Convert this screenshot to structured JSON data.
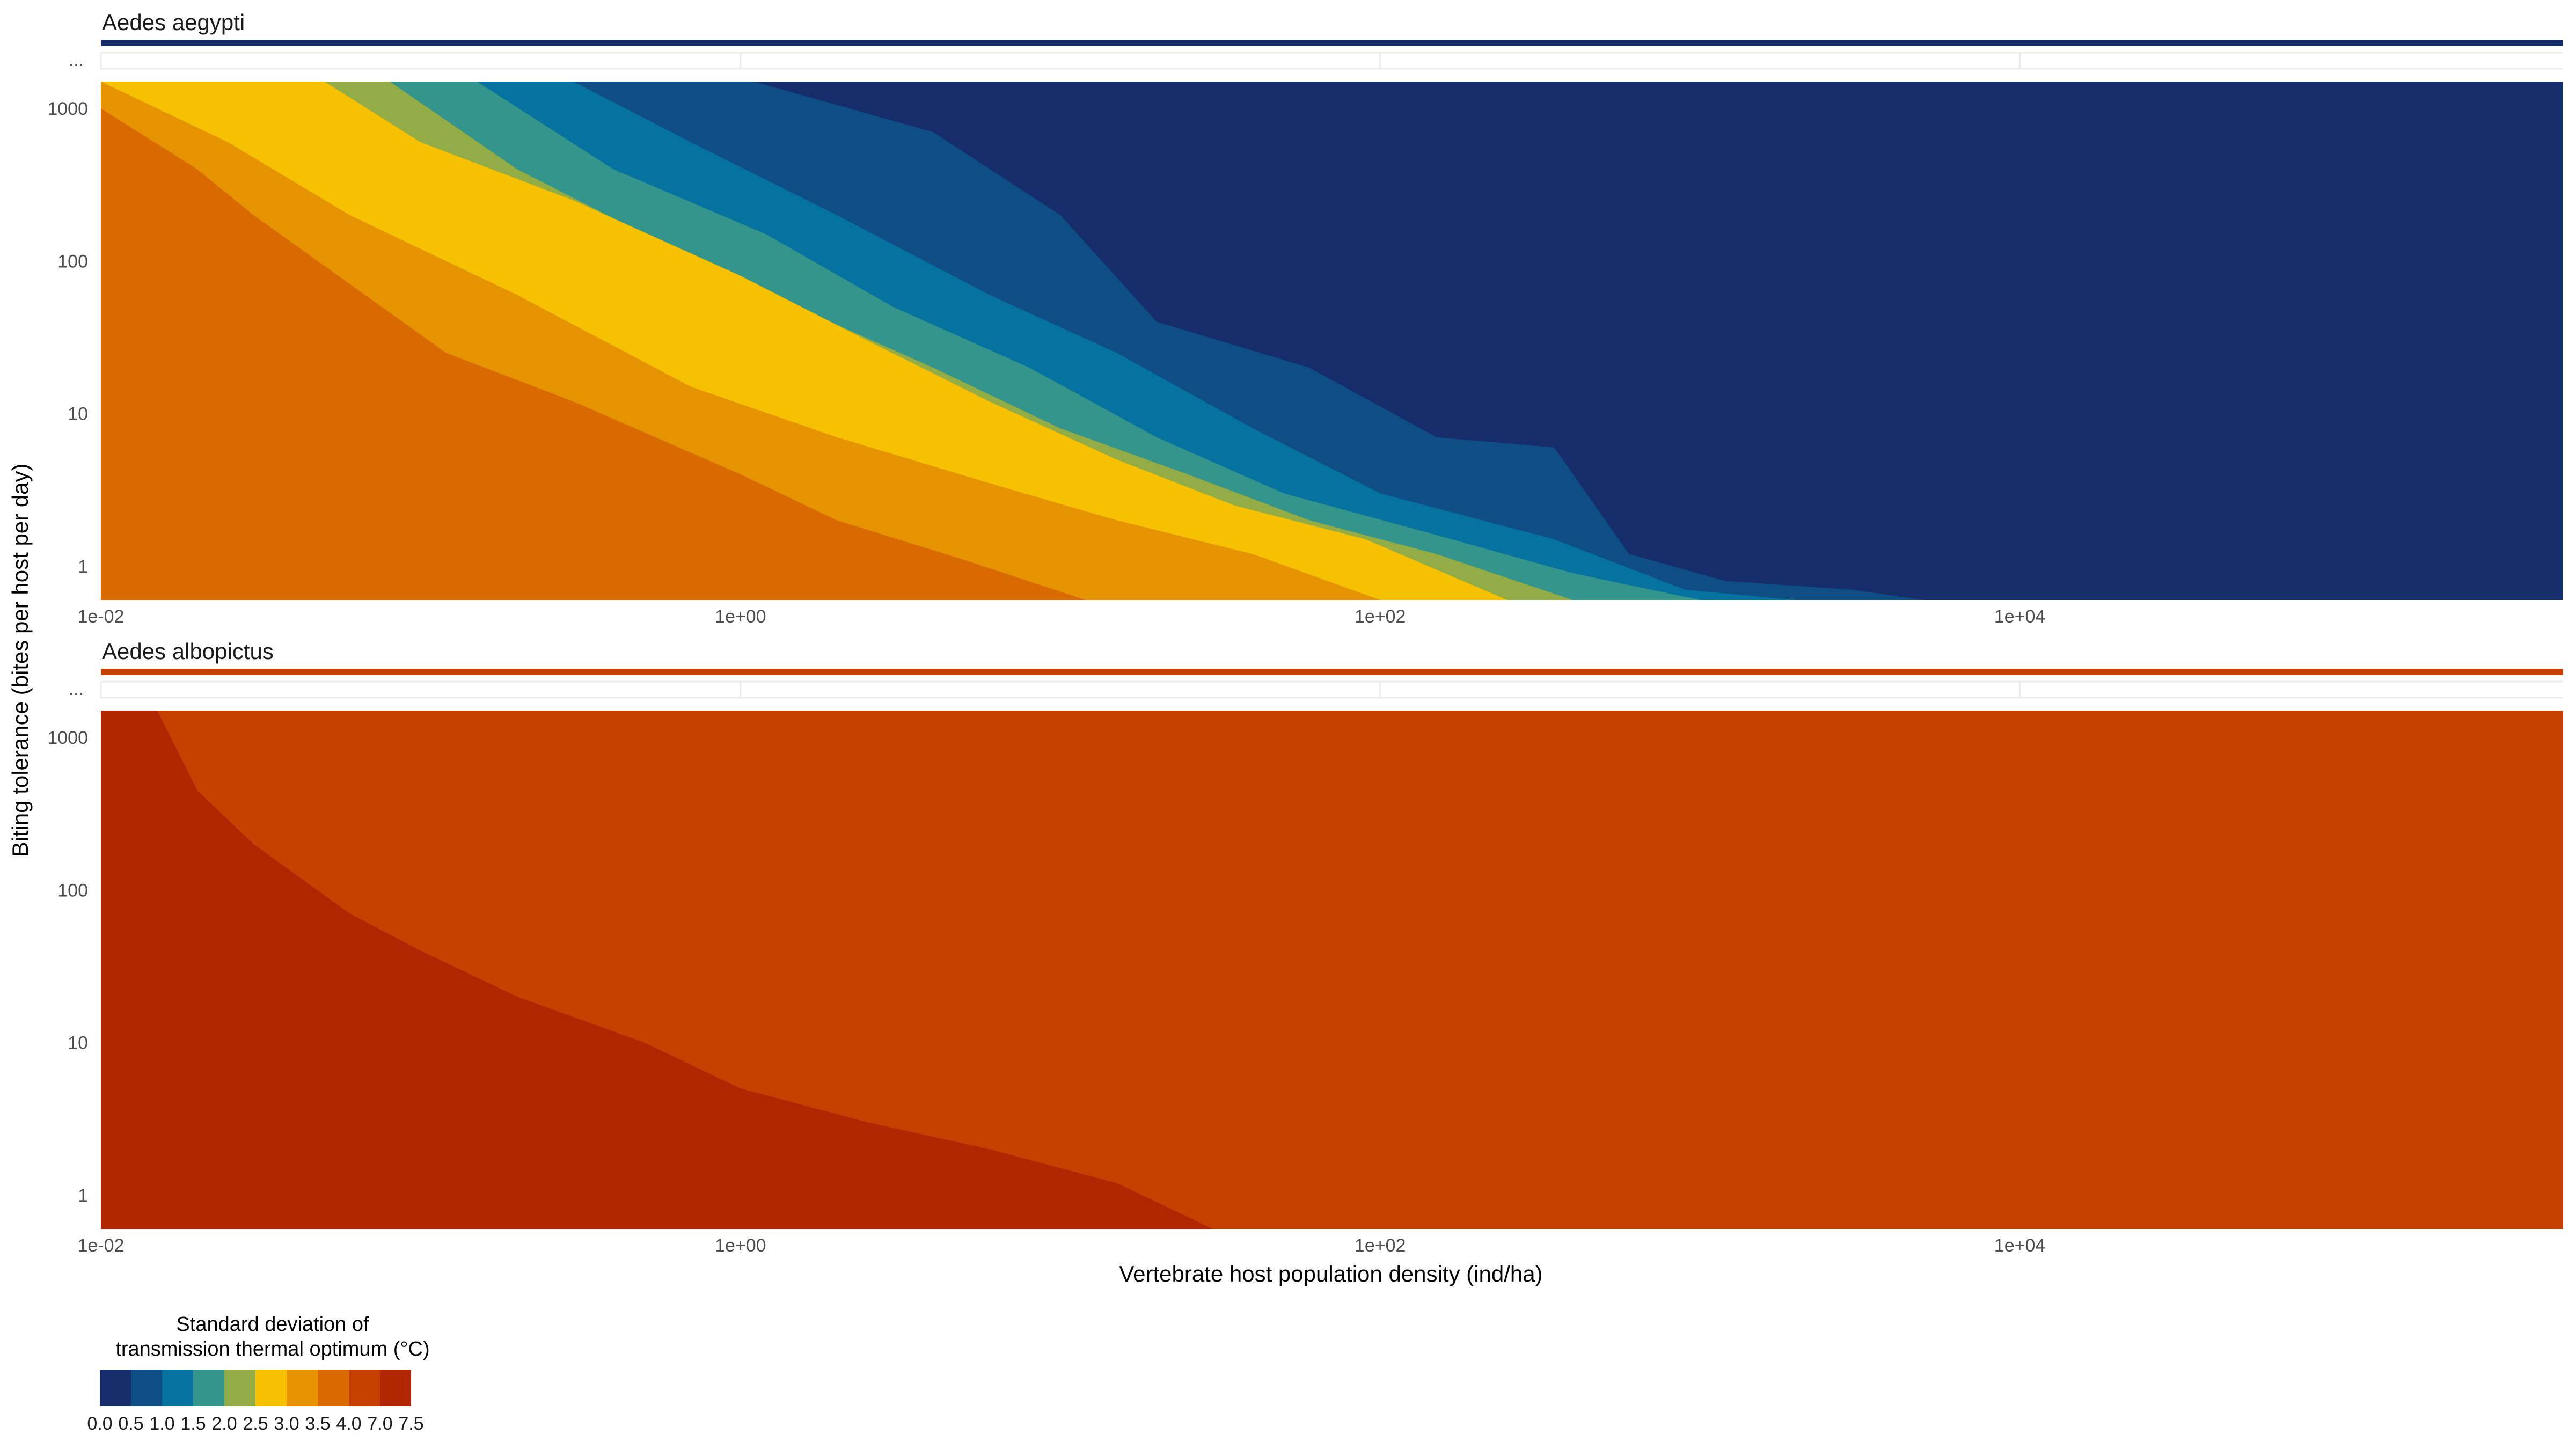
{
  "chart_data": {
    "type": "area",
    "xlabel": "Vertebrate host population density (ind/ha)",
    "ylabel": "Biting tolerance (bites per host per day)",
    "x_scale": "log10",
    "y_scale": "log10",
    "xlim": [
      0.01,
      500000
    ],
    "ylim": [
      0.6,
      1500
    ],
    "x_ticks": [
      0.01,
      1,
      100,
      10000
    ],
    "x_tick_labels": [
      "1e-02",
      "1e+00",
      "1e+02",
      "1e+04"
    ],
    "y_ticks": [
      1,
      10,
      100,
      1000
    ],
    "y_tick_labels": [
      "1",
      "10",
      "100",
      "1000"
    ],
    "strip_extra_tick_label": "...",
    "legend": {
      "title_line1": "Standard deviation of",
      "title_line2": "transmission thermal optimum (°C)",
      "breaks": [
        "0.0",
        "0.5",
        "1.0",
        "1.5",
        "2.0",
        "2.5",
        "3.0",
        "3.5",
        "4.0",
        "7.0",
        "7.5"
      ],
      "colors": [
        "#162d6b",
        "#0f4e85",
        "#06729f",
        "#34958c",
        "#93ad46",
        "#f5c100",
        "#e59400",
        "#d86a00",
        "#c64000",
        "#b02600"
      ],
      "placement": "bottom-left"
    },
    "panels": [
      {
        "title": "Aedes aegypti",
        "strip_color": "#162d6b",
        "background": "#162d6b",
        "boundaries": [
          {
            "band": "0.5-1.0",
            "lower_color": "#162d6b",
            "upper_color": "#0f4e85",
            "points": [
              [
                5000,
                0.6
              ],
              [
                3000,
                0.7
              ],
              [
                1200,
                0.8
              ],
              [
                600,
                1.2
              ],
              [
                350,
                6
              ],
              [
                150,
                7
              ],
              [
                60,
                20
              ],
              [
                20,
                40
              ],
              [
                10,
                200
              ],
              [
                4,
                700
              ],
              [
                1.1,
                1500
              ]
            ]
          },
          {
            "band": "1.0-1.5",
            "upper_color": "#06729f",
            "points": [
              [
                2000,
                0.6
              ],
              [
                900,
                0.7
              ],
              [
                350,
                1.5
              ],
              [
                100,
                3
              ],
              [
                40,
                8
              ],
              [
                15,
                25
              ],
              [
                6,
                60
              ],
              [
                2,
                200
              ],
              [
                0.7,
                600
              ],
              [
                0.3,
                1500
              ]
            ]
          },
          {
            "band": "1.5-2.0",
            "upper_color": "#34958c",
            "points": [
              [
                1000,
                0.6
              ],
              [
                400,
                0.9
              ],
              [
                150,
                1.6
              ],
              [
                50,
                3
              ],
              [
                20,
                7
              ],
              [
                8,
                20
              ],
              [
                3,
                50
              ],
              [
                1.2,
                150
              ],
              [
                0.4,
                400
              ],
              [
                0.15,
                1500
              ]
            ]
          },
          {
            "band": "2.0-2.5",
            "upper_color": "#93ad46",
            "points": [
              [
                400,
                0.6
              ],
              [
                150,
                1.2
              ],
              [
                60,
                2
              ],
              [
                25,
                4
              ],
              [
                10,
                8
              ],
              [
                4,
                20
              ],
              [
                1.5,
                50
              ],
              [
                0.5,
                150
              ],
              [
                0.2,
                400
              ],
              [
                0.08,
                1500
              ]
            ]
          },
          {
            "band": "2.5-3.0",
            "upper_color": "#f5c100",
            "points": [
              [
                250,
                0.6
              ],
              [
                90,
                1.5
              ],
              [
                35,
                2.5
              ],
              [
                15,
                5
              ],
              [
                6,
                12
              ],
              [
                2.5,
                30
              ],
              [
                1,
                80
              ],
              [
                0.3,
                250
              ],
              [
                0.1,
                600
              ],
              [
                0.05,
                1500
              ]
            ]
          },
          {
            "band": "3.0-3.5",
            "upper_color": "#e59400",
            "points": [
              [
                100,
                0.6
              ],
              [
                40,
                1.2
              ],
              [
                15,
                2
              ],
              [
                6,
                3.5
              ],
              [
                2,
                7
              ],
              [
                0.7,
                15
              ],
              [
                0.2,
                60
              ],
              [
                0.06,
                200
              ],
              [
                0.025,
                600
              ],
              [
                0.01,
                1500
              ]
            ]
          },
          {
            "band": "3.5-4.0",
            "upper_color": "#d86a00",
            "points": [
              [
                12,
                0.6
              ],
              [
                5,
                1.1
              ],
              [
                2,
                2
              ],
              [
                1,
                4
              ],
              [
                0.3,
                12
              ],
              [
                0.12,
                25
              ],
              [
                0.03,
                200
              ],
              [
                0.02,
                400
              ],
              [
                0.01,
                1000
              ]
            ]
          }
        ]
      },
      {
        "title": "Aedes albopictus",
        "strip_color": "#c64000",
        "background": "#c64000",
        "boundaries": [
          {
            "band": "4.0-7.0",
            "lower_color": "#c64000",
            "upper_color": "#b02600",
            "points": [
              [
                30,
                0.6
              ],
              [
                15,
                1.2
              ],
              [
                6,
                2
              ],
              [
                2.5,
                3
              ],
              [
                1,
                5
              ],
              [
                0.5,
                10
              ],
              [
                0.2,
                20
              ],
              [
                0.1,
                40
              ],
              [
                0.06,
                70
              ],
              [
                0.03,
                200
              ],
              [
                0.02,
                450
              ],
              [
                0.015,
                1500
              ]
            ]
          }
        ]
      }
    ]
  }
}
